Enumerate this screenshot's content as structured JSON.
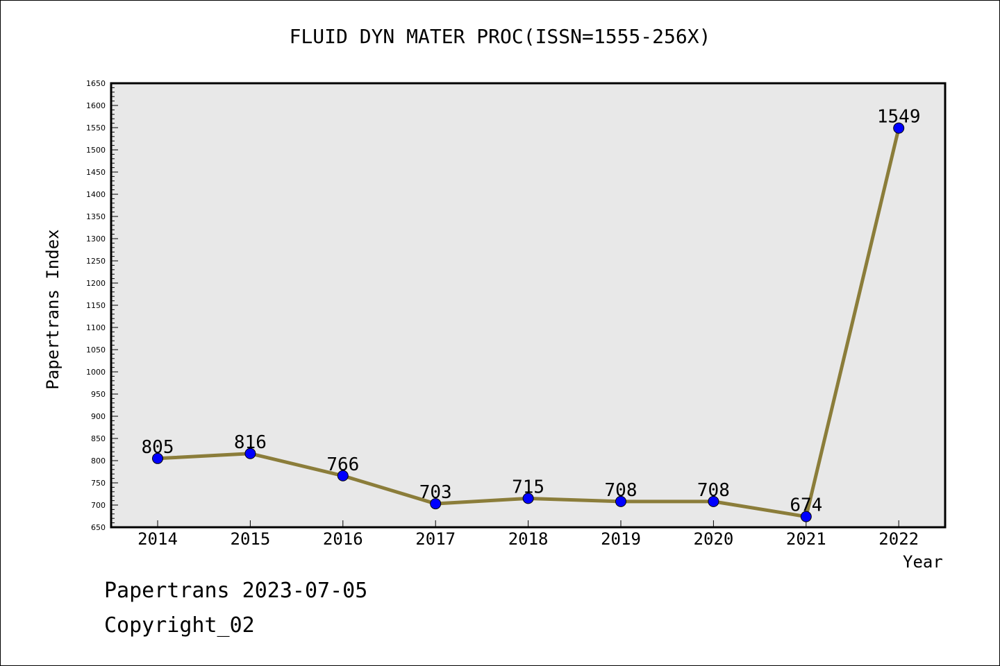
{
  "chart_data": {
    "type": "line",
    "title": "FLUID DYN MATER PROC(ISSN=1555-256X)",
    "xlabel": "Year",
    "ylabel": "Papertrans Index",
    "categories": [
      "2014",
      "2015",
      "2016",
      "2017",
      "2018",
      "2019",
      "2020",
      "2021",
      "2022"
    ],
    "values": [
      805,
      816,
      766,
      703,
      715,
      708,
      708,
      674,
      1549
    ],
    "ylim": [
      650,
      1650
    ],
    "yticks": [
      650,
      700,
      750,
      800,
      850,
      900,
      950,
      1000,
      1050,
      1100,
      1150,
      1200,
      1250,
      1300,
      1350,
      1400,
      1450,
      1500,
      1550,
      1600,
      1650
    ],
    "grid": false,
    "colors": {
      "line": "#8b7d3a",
      "marker": "#0000ff",
      "plot_bg": "#e8e8e8"
    }
  },
  "footer": {
    "date": "Papertrans 2023-07-05",
    "copyright": "Copyright_02"
  }
}
